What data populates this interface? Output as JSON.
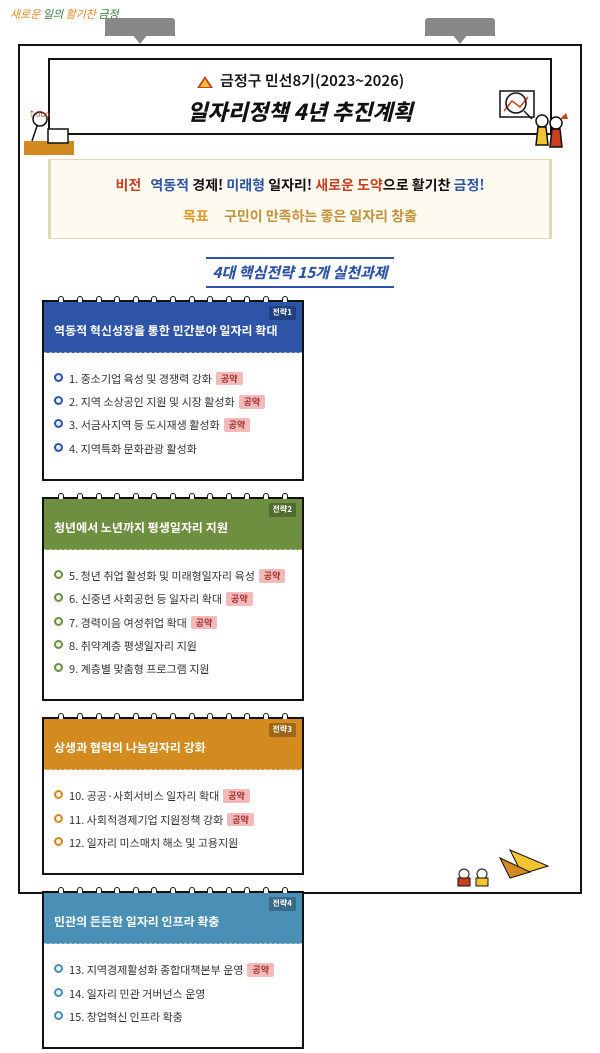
{
  "logo_text": "새로운 일의 활기찬 금정",
  "title": {
    "org": "금정구",
    "period": "민선8기(2023~2026)",
    "main": "일자리정책 4년 추진계획"
  },
  "vision": {
    "label": "비전",
    "part1": "역동적",
    "part1b": "경제!",
    "part2": "미래형",
    "part2b": "일자리!",
    "part3": "새로운 도약",
    "part3b": "으로 활기찬",
    "part3c": "금정!"
  },
  "goal": {
    "label": "목표",
    "text": "구민이 만족하는 좋은 일자리 창출"
  },
  "subhead": "4대 핵심전략 15개 실천과제",
  "cards": [
    {
      "tag": "전략1",
      "title": "역동적 혁신성장을 통한 민간분야 일자리 확대",
      "items": [
        {
          "num": "1.",
          "text": "중소기업 육성 및 경쟁력 강화",
          "pledge": true
        },
        {
          "num": "2.",
          "text": "지역 소상공인 지원 및 시장 활성화",
          "pledge": true
        },
        {
          "num": "3.",
          "text": "서금사지역 등 도시재생 활성화",
          "pledge": true
        },
        {
          "num": "4.",
          "text": "지역특화 문화관광 활성화",
          "pledge": false
        }
      ]
    },
    {
      "tag": "전략2",
      "title": "청년에서 노년까지 평생일자리 지원",
      "items": [
        {
          "num": "5.",
          "text": "청년 취업 활성화 및 미래형일자리 육성",
          "pledge": true
        },
        {
          "num": "6.",
          "text": "신중년 사회공헌 등 일자리 확대",
          "pledge": true
        },
        {
          "num": "7.",
          "text": "경력이음 여성취업 확대",
          "pledge": true
        },
        {
          "num": "8.",
          "text": "취약계층 평생일자리 지원",
          "pledge": false
        },
        {
          "num": "9.",
          "text": "계층별 맞춤형 프로그램 지원",
          "pledge": false
        }
      ]
    },
    {
      "tag": "전략3",
      "title": "상생과 협력의 나눔일자리 강화",
      "items": [
        {
          "num": "10.",
          "text": "공공·사회서비스 일자리 확대",
          "pledge": true
        },
        {
          "num": "11.",
          "text": "사회적경제기업 지원정책 강화",
          "pledge": true
        },
        {
          "num": "12.",
          "text": "일자리 미스매치 해소 및 고용지원",
          "pledge": false
        }
      ]
    },
    {
      "tag": "전략4",
      "title": "민관의 든든한 일자리 인프라 확충",
      "items": [
        {
          "num": "13.",
          "text": "지역경제활성화 종합대책본부 운영",
          "pledge": true
        },
        {
          "num": "14.",
          "text": "일자리 민관 거버넌스 운영",
          "pledge": false
        },
        {
          "num": "15.",
          "text": "창업혁신 인프라 확충",
          "pledge": false
        }
      ]
    }
  ],
  "pledge_label": "공약",
  "colors": {
    "c1": "#2d54a6",
    "c2": "#6e8f3f",
    "c3": "#d38a1f",
    "c4": "#4a8fb5",
    "vision_bg": "#fdfaf0",
    "badge_bg": "#f4b9b9",
    "badge_fg": "#a03030"
  }
}
